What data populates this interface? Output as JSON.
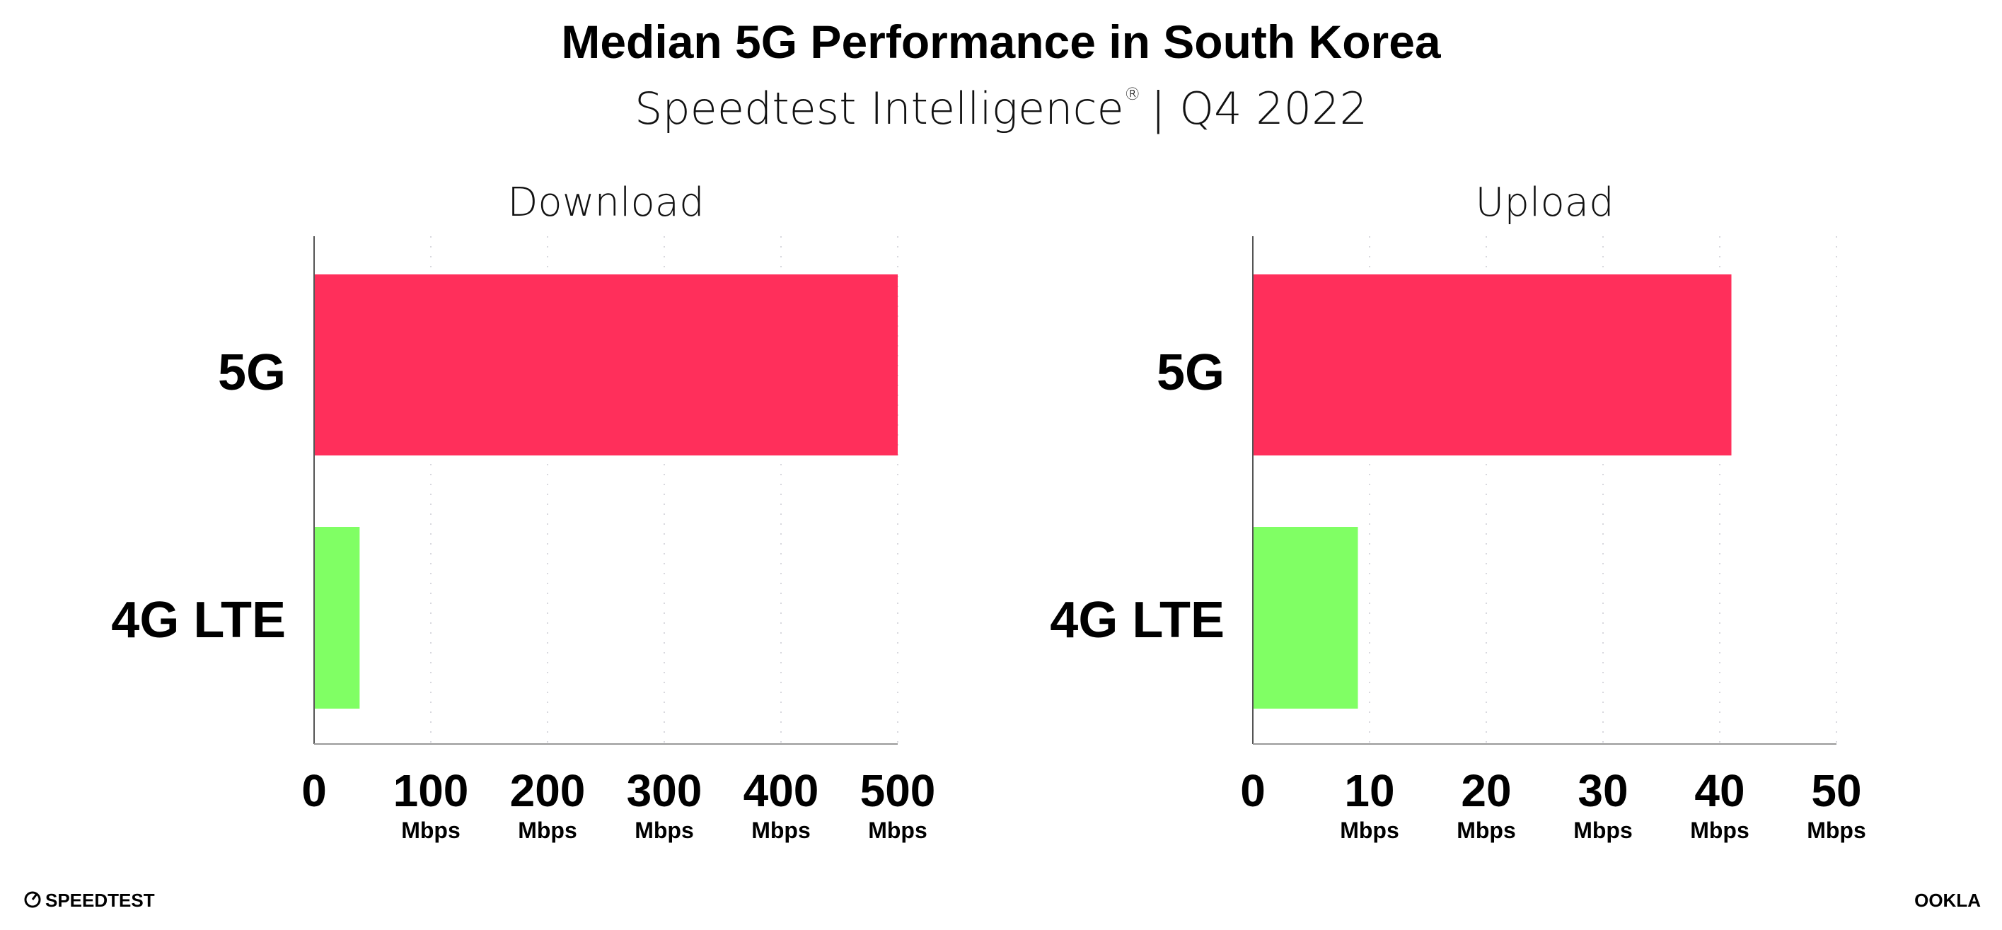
{
  "chart_data": [
    {
      "type": "bar",
      "orientation": "horizontal",
      "title": "Download",
      "categories": [
        "5G",
        "4G LTE"
      ],
      "values": [
        500,
        39
      ],
      "xlim": [
        0,
        500
      ],
      "xticks": [
        "0",
        "100",
        "200",
        "300",
        "400",
        "500"
      ],
      "xtick_unit": "Mbps",
      "colors": [
        "#FF2F5B",
        "#80FF64"
      ],
      "grid": "vertical dotted"
    },
    {
      "type": "bar",
      "orientation": "horizontal",
      "title": "Upload",
      "categories": [
        "5G",
        "4G LTE"
      ],
      "values": [
        41,
        9
      ],
      "xlim": [
        0,
        50
      ],
      "xticks": [
        "0",
        "10",
        "20",
        "30",
        "40",
        "50"
      ],
      "xtick_unit": "Mbps",
      "colors": [
        "#FF2F5B",
        "#80FF64"
      ],
      "grid": "vertical dotted"
    }
  ],
  "header": {
    "title": "Median 5G Performance in South Korea",
    "subtitle": "Speedtest Intelligence",
    "subtitle_mark": "®",
    "subtitle_period": "| Q4 2022"
  },
  "footer": {
    "left_logo": "SPEEDTEST",
    "right_logo": "OOKLA"
  }
}
